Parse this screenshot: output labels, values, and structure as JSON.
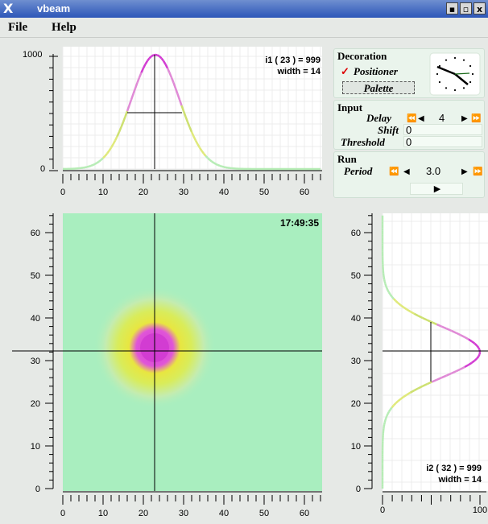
{
  "window": {
    "title": "vbeam",
    "logo": "X",
    "btn_min": "▪",
    "btn_max": "▫",
    "btn_close": "x"
  },
  "menu": {
    "file": "File",
    "help": "Help"
  },
  "top_plot": {
    "readout": "i1 ( 23 ) = 999",
    "width_label": "width = 14",
    "y_ticks": [
      "1000",
      "0"
    ],
    "x_ticks": [
      "0",
      "10",
      "20",
      "30",
      "40",
      "50",
      "60"
    ]
  },
  "image_plot": {
    "time": "17:49:35",
    "y_ticks": [
      "60",
      "50",
      "40",
      "30",
      "20",
      "10",
      "0"
    ],
    "x_ticks": [
      "0",
      "10",
      "20",
      "30",
      "40",
      "50",
      "60"
    ]
  },
  "side_plot": {
    "readout": "i2 ( 32 ) = 999",
    "width_label": "width = 14",
    "y_ticks": [
      "60",
      "50",
      "40",
      "30",
      "20",
      "10",
      "0"
    ],
    "x_ticks": [
      "0",
      "100"
    ]
  },
  "decoration": {
    "title": "Decoration",
    "check": "✓",
    "positioner": "Positioner",
    "palette": "Palette"
  },
  "input": {
    "title": "Input",
    "delay_label": "Delay",
    "delay_value": "4",
    "shift_label": "Shift",
    "shift_value": "0",
    "threshold_label": "Threshold",
    "threshold_value": "0"
  },
  "run": {
    "title": "Run",
    "period_label": "Period",
    "period_value": "3.0",
    "play": "▶"
  },
  "arrows": {
    "ff_left": "⏪",
    "left": "◀",
    "right": "▶",
    "ff_right": "⏩"
  },
  "colors": {
    "plot_bg": "#a9eebf",
    "panel_bg": "#eaf4ec",
    "grid": "#e2e2e2",
    "peak": "#d23cd2",
    "mid": "#cde070"
  }
}
